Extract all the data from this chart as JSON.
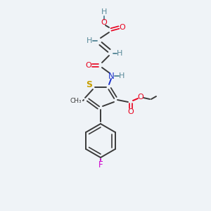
{
  "bg_color": "#eff3f7",
  "atom_colors": {
    "C": "#3a3a3a",
    "H": "#5a8a9a",
    "O": "#e8001d",
    "N": "#1a30cc",
    "S": "#c8a000",
    "F": "#cc00cc"
  }
}
